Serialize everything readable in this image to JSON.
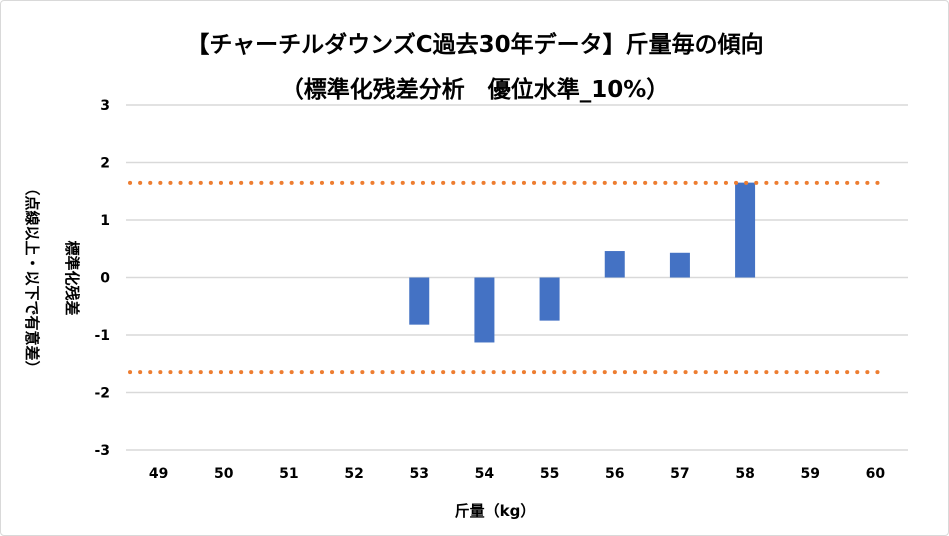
{
  "chart_data": {
    "type": "bar",
    "title": "【チャーチルダウンズC過去30年データ】斤量毎の傾向",
    "subtitle": "（標準化残差分析　優位水準_10%）",
    "xlabel": "斤量（kg）",
    "ylabel": "標準化残差",
    "ylabel2": "（点線以上・以下で有意差）",
    "categories": [
      "49",
      "50",
      "51",
      "52",
      "53",
      "54",
      "55",
      "56",
      "57",
      "58",
      "59",
      "60"
    ],
    "values": [
      null,
      null,
      null,
      null,
      -0.82,
      -1.13,
      -0.75,
      0.46,
      0.43,
      1.65,
      null,
      null
    ],
    "ylim": [
      -3,
      3
    ],
    "yticks": [
      "3",
      "2",
      "1",
      "0",
      "-1",
      "-2",
      "-3"
    ],
    "thresholds": [
      1.645,
      -1.645
    ],
    "grid": true,
    "bar_color": "#4472C4",
    "threshold_color": "#ED7D31",
    "grid_color": "#D9D9D9"
  }
}
